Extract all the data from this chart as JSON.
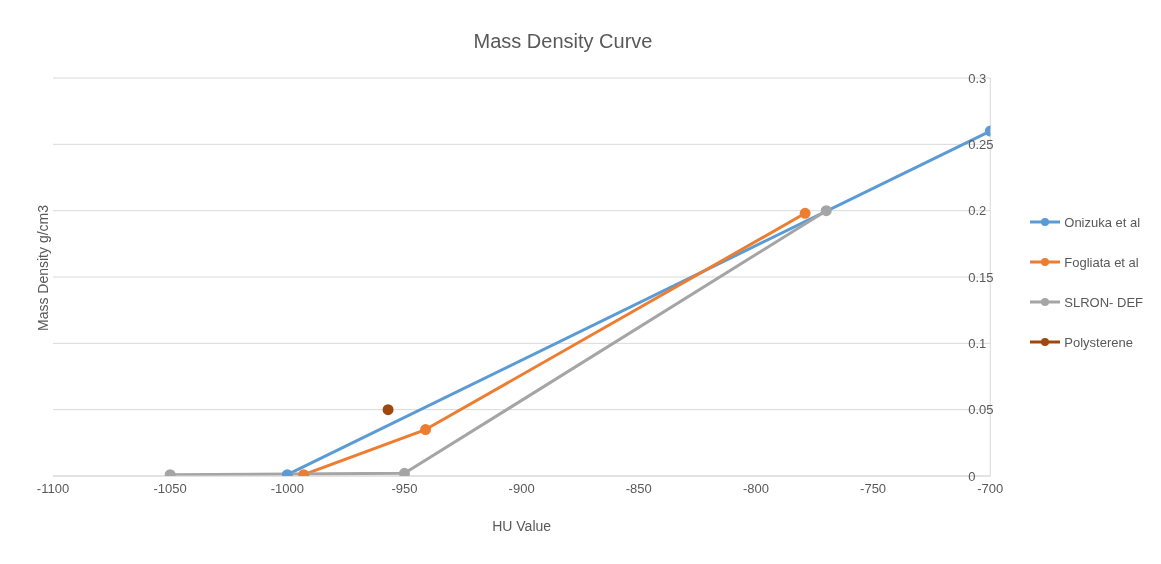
{
  "chart_data": {
    "type": "line",
    "title": "Mass Density Curve",
    "xlabel": "HU Value",
    "ylabel": "Mass Density g/cm3",
    "xlim": [
      -1100,
      -700
    ],
    "xticks": [
      -1100,
      -1050,
      -1000,
      -950,
      -900,
      -850,
      -800,
      -750,
      -700
    ],
    "ylim": [
      0,
      0.3
    ],
    "yticks": [
      0,
      0.05,
      0.1,
      0.15,
      0.2,
      0.25,
      0.3
    ],
    "grid": "y",
    "legend": "right",
    "marker": "circle",
    "line_style": "solid",
    "series": [
      {
        "name": "Onizuka et al",
        "color": "#5b9bd5",
        "x": [
          -1000,
          -700
        ],
        "values": [
          0.001,
          0.26
        ]
      },
      {
        "name": "Fogliata et al",
        "color": "#ed7d31",
        "x": [
          -993,
          -941,
          -779
        ],
        "values": [
          0.001,
          0.035,
          0.198
        ]
      },
      {
        "name": "SLRON- DEF",
        "color": "#a5a5a5",
        "x": [
          -1050,
          -950,
          -770
        ],
        "values": [
          0.001,
          0.002,
          0.2
        ]
      },
      {
        "name": "Polysterene",
        "color": "#9e480e",
        "x": [
          -957
        ],
        "values": [
          0.05
        ]
      }
    ]
  }
}
